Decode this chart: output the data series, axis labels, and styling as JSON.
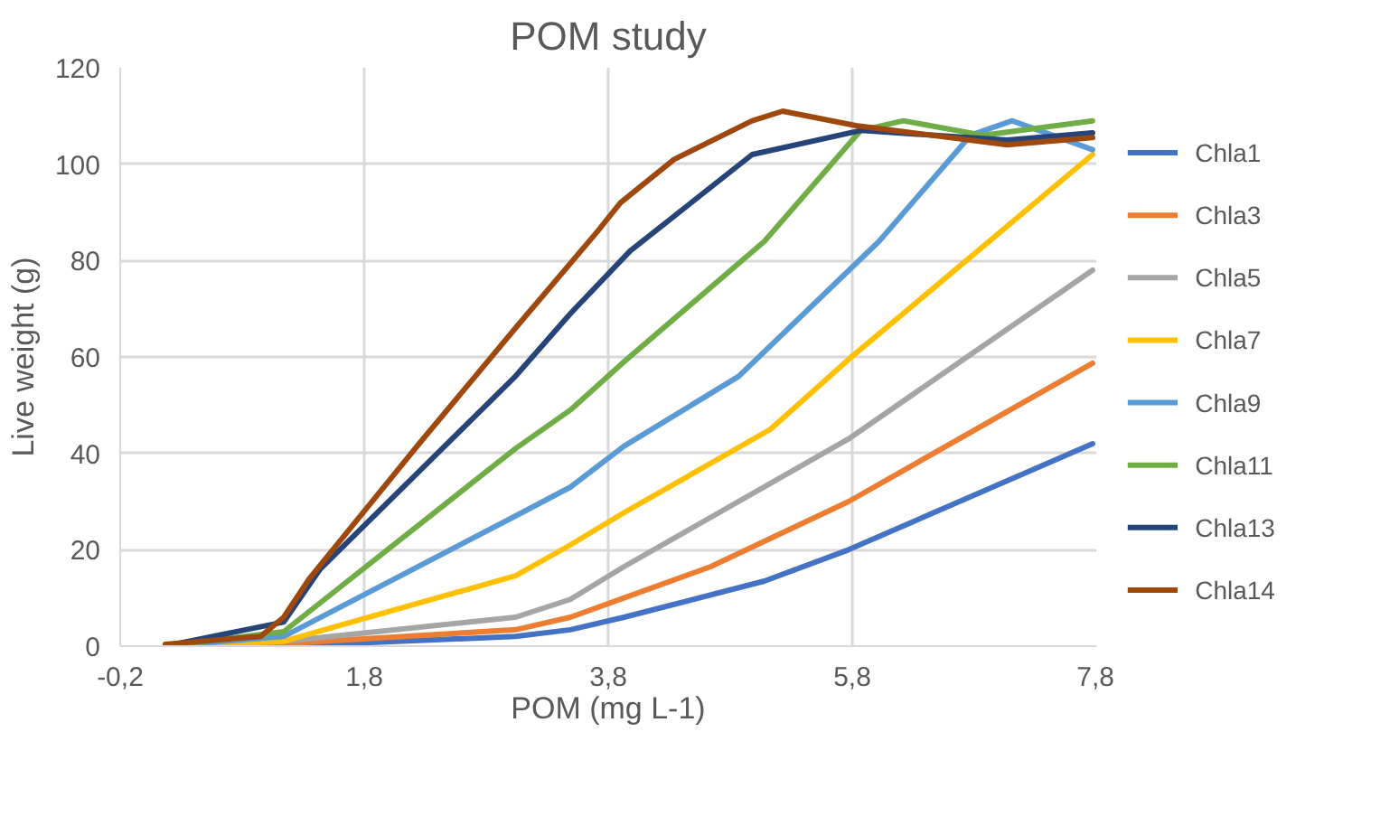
{
  "chart_data": {
    "type": "line",
    "title": "POM study",
    "xlabel": "POM (mg L-1)",
    "ylabel": "Live weight (g)",
    "xlim": [
      -0.2,
      7.8
    ],
    "xticks": [
      {
        "value": -0.2,
        "label": "-0,2"
      },
      {
        "value": 1.8,
        "label": "1,8"
      },
      {
        "value": 3.8,
        "label": "3,8"
      },
      {
        "value": 5.8,
        "label": "5,8"
      },
      {
        "value": 7.8,
        "label": "7,8"
      }
    ],
    "ylim": [
      0,
      120
    ],
    "yticks": [
      0,
      20,
      40,
      60,
      80,
      100,
      120
    ],
    "grid": true,
    "legend": "right",
    "marker": "none",
    "line_style": "solid",
    "series": [
      {
        "name": "Chla1",
        "color": "#4472c4",
        "x": [
          0.17,
          1.14,
          3.04,
          3.49,
          3.93,
          5.08,
          5.77,
          7.77
        ],
        "values": [
          0,
          0,
          2,
          3.4,
          6,
          13.5,
          20,
          42
        ]
      },
      {
        "name": "Chla3",
        "color": "#ed7d31",
        "x": [
          0.17,
          1.14,
          3.04,
          3.49,
          3.93,
          4.64,
          5.77,
          7.77
        ],
        "values": [
          0,
          0.5,
          3.4,
          6,
          10,
          16.5,
          30,
          58.7
        ]
      },
      {
        "name": "Chla5",
        "color": "#a5a5a5",
        "x": [
          0.17,
          1.14,
          3.04,
          3.49,
          3.93,
          5.77,
          7.77
        ],
        "values": [
          0,
          1,
          6,
          9.7,
          16.5,
          43,
          78
        ]
      },
      {
        "name": "Chla7",
        "color": "#ffc000",
        "x": [
          0.17,
          1.14,
          3.04,
          3.49,
          3.93,
          5.13,
          5.77,
          7.77
        ],
        "values": [
          0,
          1,
          14.6,
          21,
          27.7,
          45,
          59.5,
          102
        ]
      },
      {
        "name": "Chla9",
        "color": "#5b9bd5",
        "x": [
          0.17,
          1.14,
          3.04,
          3.49,
          3.93,
          4.87,
          6.02,
          6.77,
          7.11,
          7.77
        ],
        "values": [
          0,
          2,
          27,
          33,
          41.5,
          56,
          84,
          106,
          109,
          103
        ]
      },
      {
        "name": "Chla11",
        "color": "#70ad47",
        "x": [
          0.17,
          1.14,
          3.04,
          3.49,
          3.93,
          5.08,
          5.87,
          6.22,
          6.87,
          7.77
        ],
        "values": [
          0,
          3,
          41,
          49,
          59,
          84,
          107,
          109,
          106,
          109
        ]
      },
      {
        "name": "Chla13",
        "color": "#264478",
        "x": [
          0.17,
          1.14,
          1.44,
          3.04,
          3.49,
          3.98,
          4.98,
          5.87,
          7.07,
          7.77
        ],
        "values": [
          0,
          5,
          16,
          56,
          69,
          82,
          102,
          107,
          105,
          106.5
        ]
      },
      {
        "name": "Chla14",
        "color": "#9e480e",
        "x": [
          0.17,
          0.95,
          1.14,
          1.35,
          2.25,
          3.04,
          3.71,
          3.9,
          4.34,
          4.98,
          5.23,
          5.83,
          7.07,
          7.77
        ],
        "values": [
          0.4,
          2,
          6,
          14,
          42,
          66,
          86,
          92,
          101,
          109,
          111,
          108,
          104,
          105.5
        ]
      }
    ]
  }
}
